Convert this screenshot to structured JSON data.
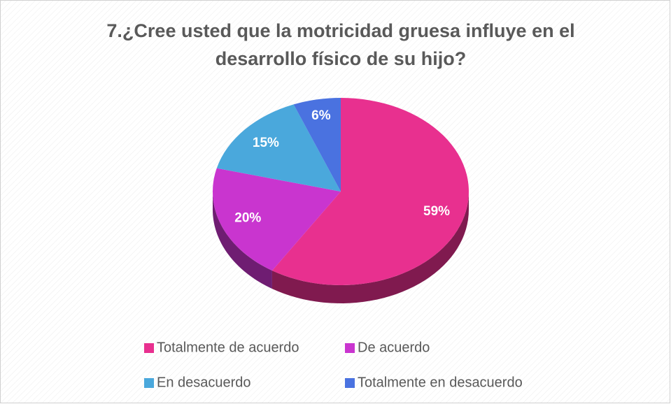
{
  "chart_data": {
    "type": "pie",
    "title": "7.¿Cree usted que la motricidad gruesa influye en el desarrollo físico de su hijo?",
    "categories": [
      "Totalmente de acuerdo",
      "De acuerdo",
      "En desacuerdo",
      "Totalmente en desacuerdo"
    ],
    "values": [
      59,
      20,
      15,
      6
    ],
    "value_labels": [
      "59%",
      "20%",
      "15%",
      "6%"
    ],
    "colors": [
      "#e8308f",
      "#c935cf",
      "#4aa8dc",
      "#4a72e0"
    ],
    "legend": "bottom"
  }
}
